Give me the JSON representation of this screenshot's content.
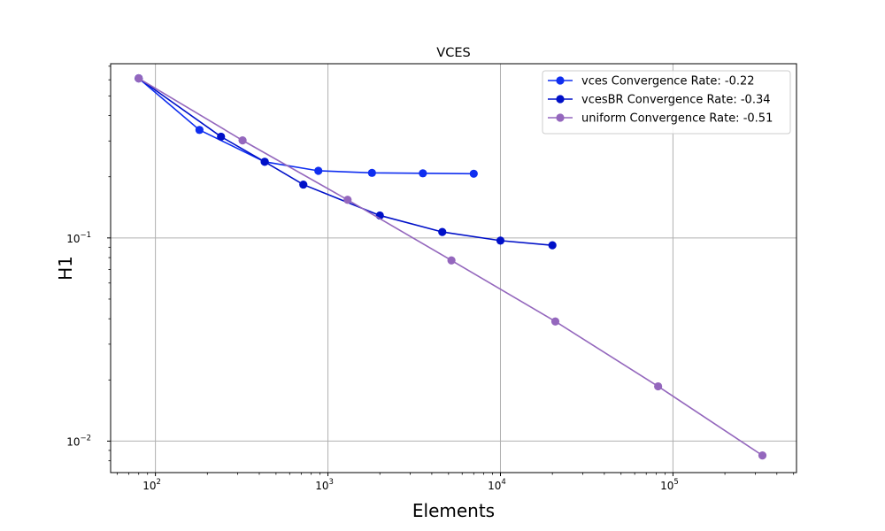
{
  "chart_data": {
    "type": "line",
    "title": "VCES",
    "xlabel": "Elements",
    "ylabel": "H1",
    "xscale": "log",
    "yscale": "log",
    "xlim": [
      55,
      520000
    ],
    "ylim": [
      0.007,
      0.72
    ],
    "grid": true,
    "legend_position": "top-right",
    "x_ticks": [
      {
        "value": 100,
        "base": "10",
        "exp": "2"
      },
      {
        "value": 1000,
        "base": "10",
        "exp": "3"
      },
      {
        "value": 10000,
        "base": "10",
        "exp": "4"
      },
      {
        "value": 100000,
        "base": "10",
        "exp": "5"
      }
    ],
    "y_ticks": [
      {
        "value": 0.1,
        "base": "10",
        "exp": "−1"
      },
      {
        "value": 0.01,
        "base": "10",
        "exp": "−2"
      }
    ],
    "series": [
      {
        "name": "vces Convergence Rate: -0.22",
        "color": "#0f2ef0",
        "x": [
          80,
          180,
          430,
          880,
          1800,
          3550,
          7000
        ],
        "y": [
          0.61,
          0.34,
          0.237,
          0.214,
          0.209,
          0.208,
          0.207
        ]
      },
      {
        "name": "vcesBR Convergence Rate: -0.34",
        "color": "#0010c8",
        "x": [
          80,
          240,
          430,
          720,
          2000,
          4600,
          10000,
          20000
        ],
        "y": [
          0.61,
          0.315,
          0.237,
          0.183,
          0.129,
          0.107,
          0.097,
          0.092
        ]
      },
      {
        "name": "uniform Convergence Rate: -0.51",
        "color": "#9467bd",
        "x": [
          80,
          320,
          1300,
          5200,
          20800,
          82000,
          330000
        ],
        "y": [
          0.61,
          0.302,
          0.154,
          0.0775,
          0.0388,
          0.0186,
          0.0085
        ]
      }
    ]
  }
}
